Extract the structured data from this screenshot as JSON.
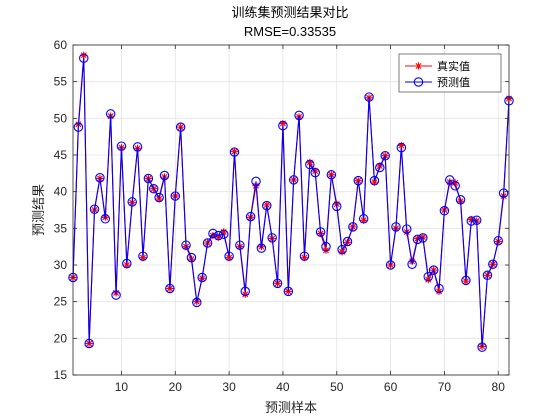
{
  "chart_data": {
    "type": "line",
    "title": "训练集预测结果对比",
    "subtitle": "RMSE=0.33535",
    "xlabel": "预测样本",
    "ylabel": "预测结果",
    "xlim": [
      1,
      82
    ],
    "ylim": [
      15,
      60
    ],
    "xticks": [
      10,
      20,
      30,
      40,
      50,
      60,
      70,
      80
    ],
    "yticks": [
      15,
      20,
      25,
      30,
      35,
      40,
      45,
      50,
      55,
      60
    ],
    "grid": true,
    "legend_position": "top-right",
    "x": [
      1,
      2,
      3,
      4,
      5,
      6,
      7,
      8,
      9,
      10,
      11,
      12,
      13,
      14,
      15,
      16,
      17,
      18,
      19,
      20,
      21,
      22,
      23,
      24,
      25,
      26,
      27,
      28,
      29,
      30,
      31,
      32,
      33,
      34,
      35,
      36,
      37,
      38,
      39,
      40,
      41,
      42,
      43,
      44,
      45,
      46,
      47,
      48,
      49,
      50,
      51,
      52,
      53,
      54,
      55,
      56,
      57,
      58,
      59,
      60,
      61,
      62,
      63,
      64,
      65,
      66,
      67,
      68,
      69,
      70,
      71,
      72,
      73,
      74,
      75,
      76,
      77,
      78,
      79,
      80,
      81,
      82
    ],
    "series": [
      {
        "name": "真实值",
        "color": "#ff0000",
        "marker": "asterisk",
        "values": [
          28.3,
          49.2,
          58.6,
          19.3,
          37.5,
          41.8,
          36.5,
          50.3,
          26.2,
          46.0,
          30.0,
          38.5,
          45.9,
          31.0,
          41.8,
          40.4,
          39.0,
          42.0,
          26.8,
          39.4,
          48.8,
          32.5,
          30.8,
          25.0,
          28.2,
          33.0,
          34.0,
          33.8,
          34.5,
          31.0,
          45.5,
          32.5,
          26.0,
          36.5,
          40.8,
          32.5,
          38.2,
          33.6,
          27.5,
          49.3,
          26.4,
          41.6,
          50.2,
          31.0,
          44.0,
          42.8,
          34.3,
          32.0,
          42.3,
          38.3,
          31.8,
          33.1,
          35.2,
          41.5,
          36.1,
          52.8,
          41.3,
          43.5,
          44.9,
          30.0,
          35.0,
          46.3,
          34.5,
          30.5,
          33.6,
          33.8,
          28.0,
          29.3,
          26.4,
          37.5,
          41.3,
          41.2,
          38.7,
          27.8,
          36.2,
          36.0,
          18.9,
          28.6,
          30.1,
          33.2,
          39.4,
          52.7
        ]
      },
      {
        "name": "预测值",
        "color": "#0000ff",
        "marker": "circle",
        "values": [
          28.3,
          48.8,
          58.2,
          19.3,
          37.6,
          41.9,
          36.3,
          50.6,
          25.9,
          46.2,
          30.2,
          38.6,
          46.1,
          31.2,
          41.8,
          40.4,
          39.2,
          42.2,
          26.8,
          39.4,
          48.8,
          32.7,
          31.0,
          24.9,
          28.3,
          33.0,
          34.3,
          34.0,
          34.2,
          31.2,
          45.4,
          32.7,
          26.4,
          36.6,
          41.4,
          32.3,
          38.1,
          33.7,
          27.5,
          49.0,
          26.4,
          41.6,
          50.4,
          31.2,
          43.7,
          42.6,
          34.5,
          32.5,
          42.3,
          38.0,
          32.1,
          33.2,
          35.2,
          41.5,
          36.3,
          52.9,
          41.5,
          43.3,
          44.9,
          30.0,
          35.2,
          46.0,
          34.9,
          30.1,
          33.5,
          33.7,
          28.4,
          29.3,
          26.8,
          37.4,
          41.6,
          40.8,
          38.9,
          27.9,
          36.0,
          36.1,
          18.8,
          28.6,
          30.1,
          33.3,
          39.8,
          52.4
        ]
      }
    ]
  }
}
